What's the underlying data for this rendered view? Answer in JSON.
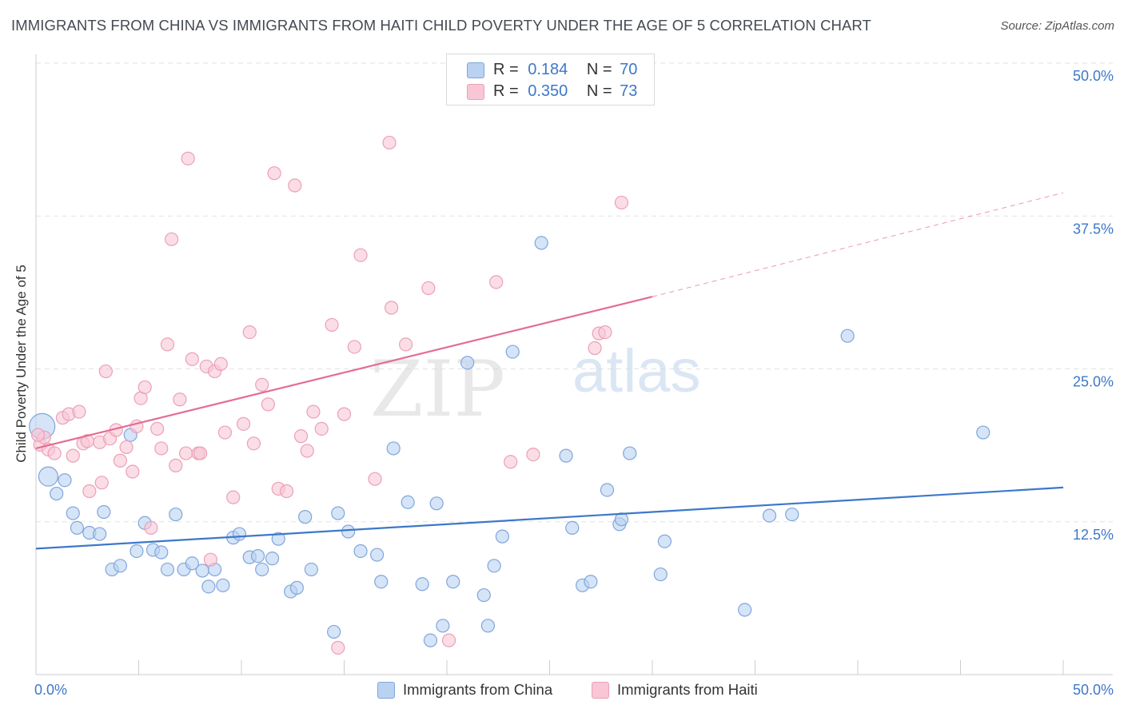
{
  "title": "IMMIGRANTS FROM CHINA VS IMMIGRANTS FROM HAITI CHILD POVERTY UNDER THE AGE OF 5 CORRELATION CHART",
  "source": "Source: ZipAtlas.com",
  "watermark": {
    "zip": "ZIP",
    "atlas": "atlas"
  },
  "colors": {
    "china": "#3d78c9",
    "china_fill": "#b9d2f2",
    "haiti": "#e46c93",
    "haiti_fill": "#f8c6d5",
    "tick_text": "#3d78c9"
  },
  "legend": {
    "china": {
      "r_label": "R =",
      "r": "0.184",
      "n_label": "N =",
      "n": "70"
    },
    "haiti": {
      "r_label": "R =",
      "r": "0.350",
      "n_label": "N =",
      "n": "73"
    }
  },
  "bottom_legend": {
    "china": "Immigrants from China",
    "haiti": "Immigrants from Haiti"
  },
  "chart_data": {
    "type": "scatter",
    "title": "IMMIGRANTS FROM CHINA VS IMMIGRANTS FROM HAITI CHILD POVERTY UNDER THE AGE OF 5 CORRELATION CHART",
    "xlabel": "",
    "ylabel": "Child Poverty Under the Age of 5",
    "xlim": [
      0,
      50
    ],
    "ylim": [
      0,
      50
    ],
    "x_tick_labels": [
      {
        "value": 0,
        "label": "0.0%"
      },
      {
        "value": 50,
        "label": "50.0%"
      }
    ],
    "y_tick_labels": [
      {
        "value": 12.5,
        "label": "12.5%"
      },
      {
        "value": 25,
        "label": "25.0%"
      },
      {
        "value": 37.5,
        "label": "37.5%"
      },
      {
        "value": 50,
        "label": "50.0%"
      }
    ],
    "grid": true,
    "legend_position": "top-center",
    "series": [
      {
        "name": "Immigrants from China",
        "color": "#3d78c9",
        "trend": {
          "x": [
            0,
            50
          ],
          "y": [
            10.3,
            15.3
          ],
          "dashed_from": null
        },
        "points": [
          [
            0.3,
            20.3,
            3
          ],
          [
            0.6,
            16.2,
            2
          ],
          [
            1.0,
            14.8,
            1
          ],
          [
            1.4,
            15.9,
            1
          ],
          [
            1.8,
            13.2,
            1
          ],
          [
            2.0,
            12.0,
            1
          ],
          [
            2.6,
            11.6,
            1
          ],
          [
            3.1,
            11.5,
            1
          ],
          [
            3.3,
            13.3,
            1
          ],
          [
            3.7,
            8.6,
            1
          ],
          [
            4.1,
            8.9,
            1
          ],
          [
            4.6,
            19.6,
            1
          ],
          [
            4.9,
            10.1,
            1
          ],
          [
            5.3,
            12.4,
            1
          ],
          [
            5.7,
            10.2,
            1
          ],
          [
            6.1,
            10.0,
            1
          ],
          [
            6.4,
            8.6,
            1
          ],
          [
            6.8,
            13.1,
            1
          ],
          [
            7.2,
            8.6,
            1
          ],
          [
            7.6,
            9.1,
            1
          ],
          [
            8.1,
            8.5,
            1
          ],
          [
            8.4,
            7.2,
            1
          ],
          [
            8.7,
            8.6,
            1
          ],
          [
            9.1,
            7.3,
            1
          ],
          [
            9.6,
            11.2,
            1
          ],
          [
            9.9,
            11.5,
            1
          ],
          [
            10.4,
            9.6,
            1
          ],
          [
            10.8,
            9.7,
            1
          ],
          [
            11.0,
            8.6,
            1
          ],
          [
            11.5,
            9.5,
            1
          ],
          [
            11.8,
            11.1,
            1
          ],
          [
            12.4,
            6.8,
            1
          ],
          [
            12.7,
            7.1,
            1
          ],
          [
            13.1,
            12.9,
            1
          ],
          [
            13.4,
            8.6,
            1
          ],
          [
            14.5,
            3.5,
            1
          ],
          [
            14.7,
            13.2,
            1
          ],
          [
            15.2,
            11.7,
            1
          ],
          [
            15.8,
            10.1,
            1
          ],
          [
            16.6,
            9.8,
            1
          ],
          [
            16.8,
            7.6,
            1
          ],
          [
            17.4,
            18.5,
            1
          ],
          [
            18.1,
            14.1,
            1
          ],
          [
            18.8,
            7.4,
            1
          ],
          [
            19.2,
            2.8,
            1
          ],
          [
            19.5,
            14.0,
            1
          ],
          [
            19.8,
            4.0,
            1
          ],
          [
            20.3,
            7.6,
            1
          ],
          [
            21.0,
            25.5,
            1
          ],
          [
            21.8,
            6.5,
            1
          ],
          [
            22.0,
            4.0,
            1
          ],
          [
            22.3,
            8.9,
            1
          ],
          [
            22.7,
            11.3,
            1
          ],
          [
            23.2,
            26.4,
            1
          ],
          [
            24.6,
            35.3,
            1
          ],
          [
            25.8,
            17.9,
            1
          ],
          [
            26.1,
            12.0,
            1
          ],
          [
            26.6,
            7.3,
            1
          ],
          [
            27.0,
            7.6,
            1
          ],
          [
            27.8,
            15.1,
            1
          ],
          [
            28.4,
            12.3,
            1
          ],
          [
            28.5,
            12.7,
            1
          ],
          [
            28.9,
            18.1,
            1
          ],
          [
            30.4,
            8.2,
            1
          ],
          [
            30.6,
            10.9,
            1
          ],
          [
            34.5,
            5.3,
            1
          ],
          [
            35.7,
            13.0,
            1
          ],
          [
            36.8,
            13.1,
            1
          ],
          [
            39.5,
            27.7,
            1
          ],
          [
            46.1,
            19.8,
            1
          ]
        ]
      },
      {
        "name": "Immigrants from Haiti",
        "color": "#e46c93",
        "trend": {
          "x": [
            0,
            30
          ],
          "y": [
            18.5,
            30.9
          ],
          "dashed_from": 30,
          "dashed_to": [
            50,
            39.4
          ]
        },
        "points": [
          [
            0.2,
            18.8,
            1
          ],
          [
            0.4,
            19.4,
            1
          ],
          [
            0.6,
            18.4,
            1
          ],
          [
            0.9,
            18.1,
            1
          ],
          [
            1.3,
            21.0,
            1
          ],
          [
            1.6,
            21.3,
            1
          ],
          [
            1.8,
            17.9,
            1
          ],
          [
            2.1,
            21.5,
            1
          ],
          [
            2.3,
            18.9,
            1
          ],
          [
            2.6,
            15.0,
            1
          ],
          [
            3.1,
            19.0,
            1
          ],
          [
            3.2,
            15.7,
            1
          ],
          [
            3.4,
            24.8,
            1
          ],
          [
            3.6,
            19.3,
            1
          ],
          [
            3.9,
            20.0,
            1
          ],
          [
            4.1,
            17.5,
            1
          ],
          [
            4.4,
            18.6,
            1
          ],
          [
            4.7,
            16.6,
            1
          ],
          [
            4.9,
            20.3,
            1
          ],
          [
            5.1,
            22.6,
            1
          ],
          [
            5.3,
            23.5,
            1
          ],
          [
            5.6,
            12.0,
            1
          ],
          [
            5.9,
            20.1,
            1
          ],
          [
            6.1,
            18.5,
            1
          ],
          [
            6.4,
            27.0,
            1
          ],
          [
            6.6,
            35.6,
            1
          ],
          [
            6.8,
            17.1,
            1
          ],
          [
            7.0,
            22.5,
            1
          ],
          [
            7.3,
            18.1,
            1
          ],
          [
            7.4,
            42.2,
            1
          ],
          [
            7.6,
            25.8,
            1
          ],
          [
            7.9,
            18.1,
            1
          ],
          [
            8.0,
            18.1,
            1
          ],
          [
            8.3,
            25.2,
            1
          ],
          [
            8.5,
            9.4,
            1
          ],
          [
            8.7,
            24.8,
            1
          ],
          [
            9.0,
            25.4,
            1
          ],
          [
            9.2,
            19.8,
            1
          ],
          [
            9.6,
            14.5,
            1
          ],
          [
            10.1,
            20.5,
            1
          ],
          [
            10.4,
            28.0,
            1
          ],
          [
            10.6,
            18.9,
            1
          ],
          [
            11.0,
            23.7,
            1
          ],
          [
            11.3,
            22.1,
            1
          ],
          [
            11.6,
            41.0,
            1
          ],
          [
            11.8,
            15.2,
            1
          ],
          [
            12.2,
            15.0,
            1
          ],
          [
            12.6,
            40.0,
            1
          ],
          [
            12.9,
            19.5,
            1
          ],
          [
            13.2,
            18.3,
            1
          ],
          [
            13.5,
            21.5,
            1
          ],
          [
            13.9,
            20.1,
            1
          ],
          [
            14.4,
            28.6,
            1
          ],
          [
            14.7,
            2.2,
            1
          ],
          [
            15.0,
            21.3,
            1
          ],
          [
            15.5,
            26.8,
            1
          ],
          [
            15.8,
            34.3,
            1
          ],
          [
            16.5,
            16.0,
            1
          ],
          [
            17.2,
            43.5,
            1
          ],
          [
            17.3,
            30.0,
            1
          ],
          [
            18.0,
            27.0,
            1
          ],
          [
            19.1,
            31.6,
            1
          ],
          [
            20.1,
            2.8,
            1
          ],
          [
            21.0,
            49.0,
            1
          ],
          [
            22.4,
            32.1,
            1
          ],
          [
            23.1,
            17.4,
            1
          ],
          [
            24.2,
            18.0,
            1
          ],
          [
            27.2,
            26.7,
            1
          ],
          [
            27.4,
            27.9,
            1
          ],
          [
            27.7,
            28.0,
            1
          ],
          [
            28.5,
            38.6,
            1
          ],
          [
            0.1,
            19.6,
            1
          ],
          [
            2.5,
            19.1,
            1
          ]
        ]
      }
    ]
  }
}
